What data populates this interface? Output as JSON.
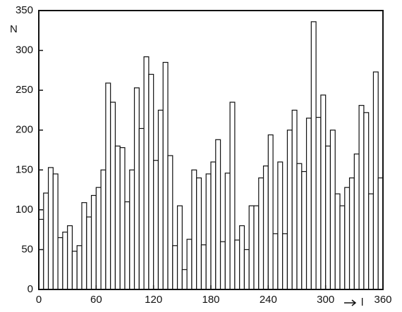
{
  "chart_data": {
    "type": "histogram",
    "ylabel": "N",
    "xlabel": "l",
    "bins": [
      0,
      5,
      10,
      15,
      20,
      25,
      30,
      35,
      40,
      45,
      50,
      55,
      60,
      65,
      70,
      75,
      80,
      85,
      90,
      95,
      100,
      105,
      110,
      115,
      120,
      125,
      130,
      135,
      140,
      145,
      150,
      155,
      160,
      165,
      170,
      175,
      180,
      185,
      190,
      195,
      200,
      205,
      210,
      215,
      220,
      225,
      230,
      235,
      240,
      245,
      250,
      255,
      260,
      265,
      270,
      275,
      280,
      285,
      290,
      295,
      300,
      305,
      310,
      315,
      320,
      325,
      330,
      335,
      340,
      345,
      350,
      355,
      360
    ],
    "values": [
      88,
      121,
      153,
      145,
      65,
      72,
      80,
      48,
      55,
      109,
      91,
      118,
      128,
      150,
      259,
      235,
      180,
      178,
      110,
      150,
      253,
      202,
      292,
      270,
      162,
      225,
      285,
      168,
      55,
      105,
      25,
      63,
      150,
      140,
      56,
      145,
      160,
      188,
      60,
      146,
      235,
      62,
      80,
      50,
      105,
      105,
      140,
      155,
      194,
      70,
      160,
      70,
      200,
      225,
      158,
      148,
      215,
      336,
      216,
      244,
      180,
      200,
      120,
      105,
      128,
      140,
      170,
      231,
      222,
      120,
      273,
      140
    ],
    "xlim": [
      0,
      360
    ],
    "xticks": [
      0,
      60,
      120,
      180,
      240,
      300,
      360
    ],
    "ylim": [
      0,
      350
    ],
    "yticks": [
      0,
      50,
      100,
      150,
      200,
      250,
      300,
      350
    ]
  }
}
